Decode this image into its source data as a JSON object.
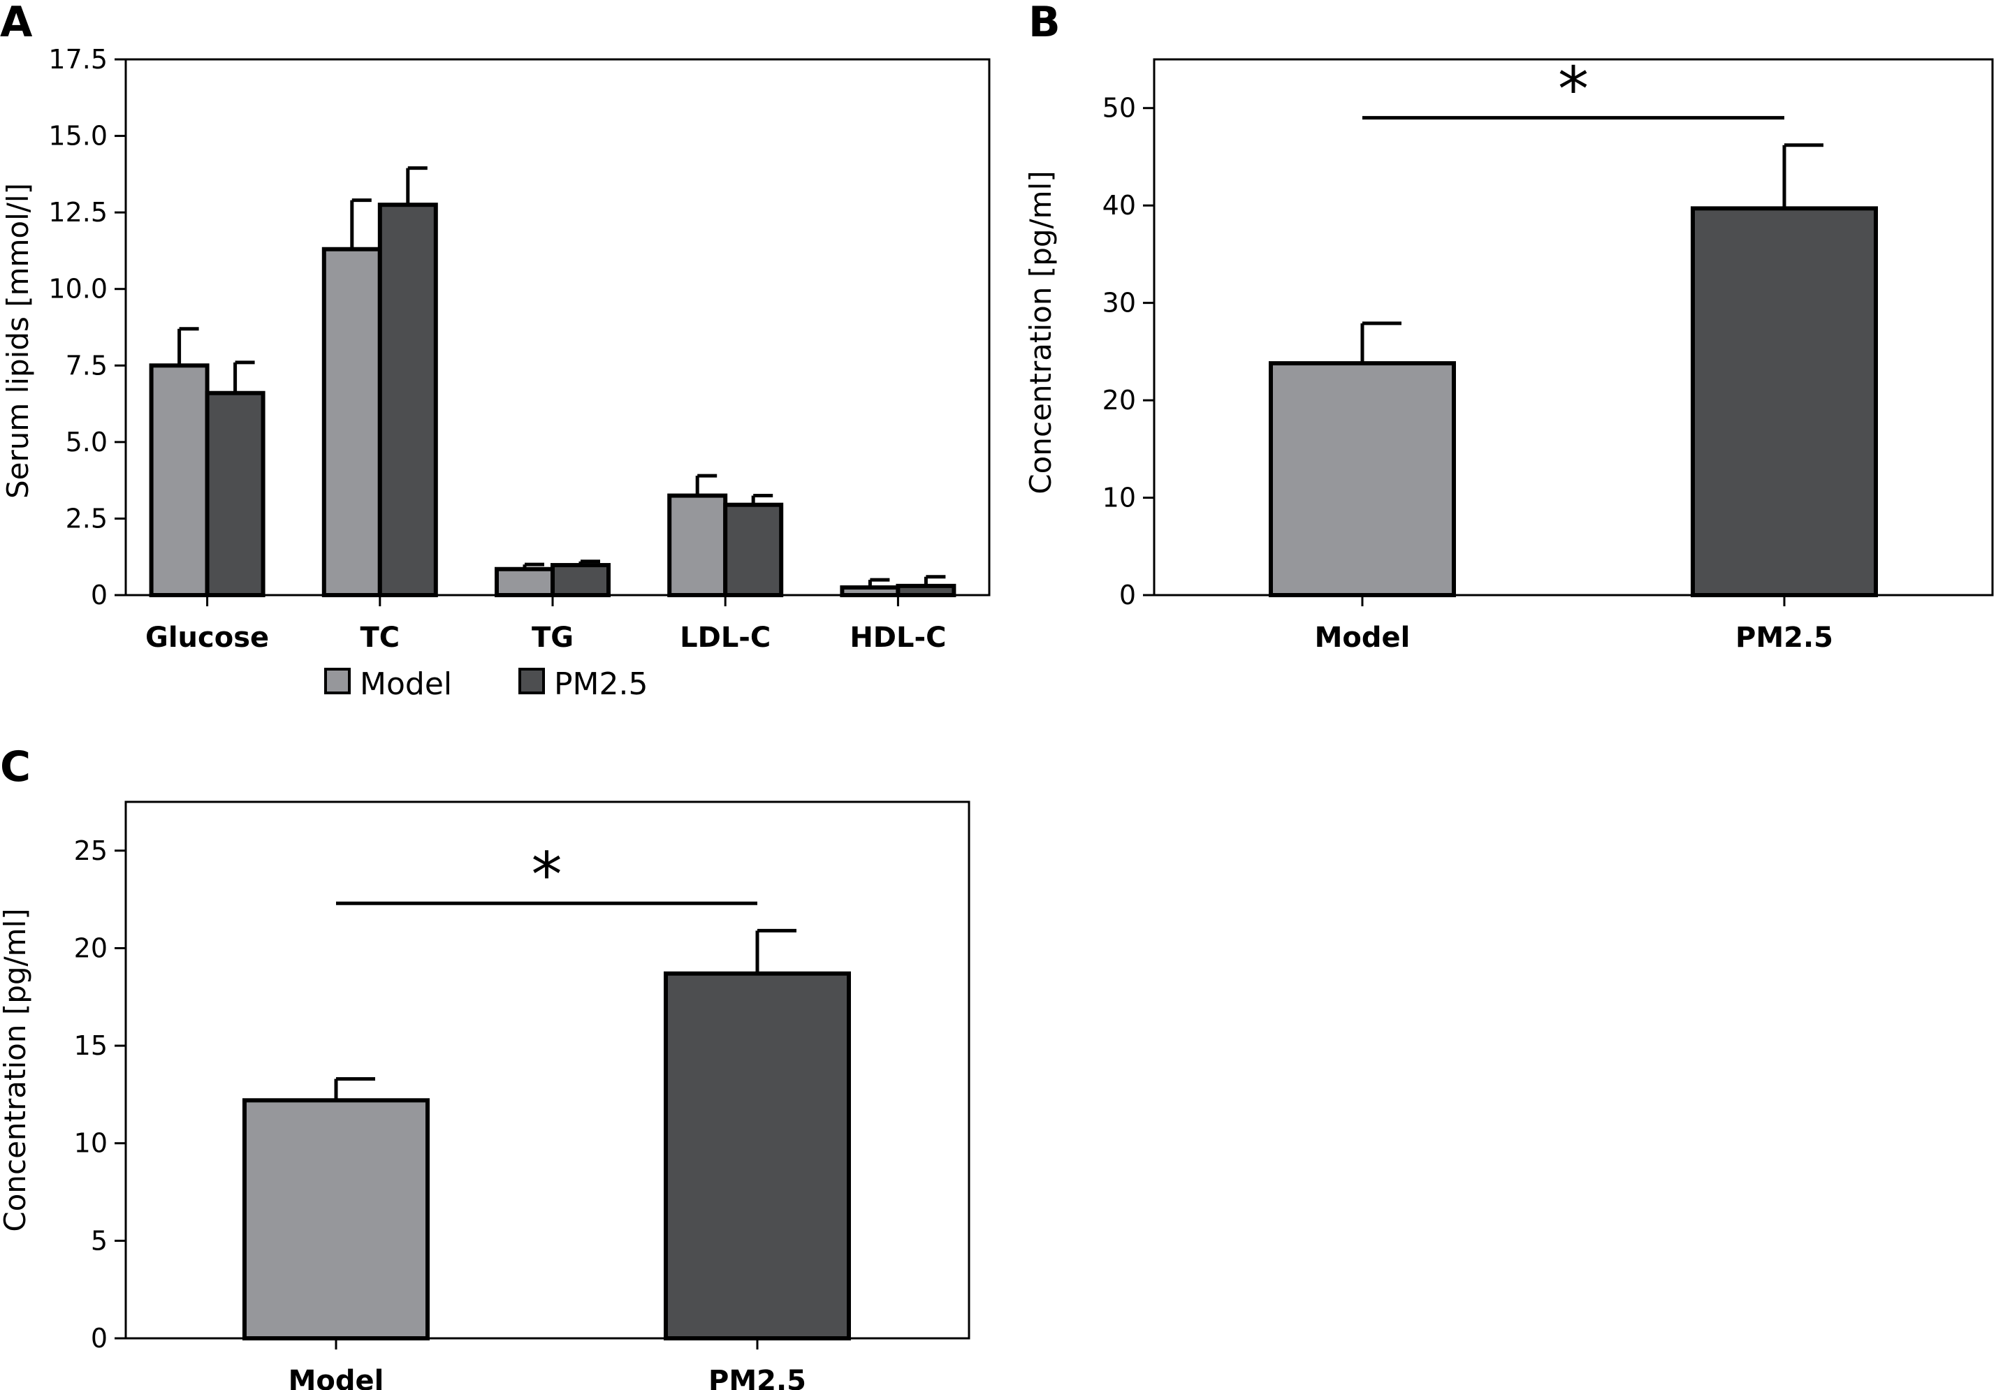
{
  "colors": {
    "model": "#96979b",
    "pm25": "#4d4e50"
  },
  "chart_data": [
    {
      "id": "A",
      "type": "bar",
      "panel_label": "A",
      "ylabel": "Serum lipids [mmol/l]",
      "ylim": [
        0,
        17.5
      ],
      "yticks": [
        "0",
        "2.5",
        "5.0",
        "7.5",
        "10.0",
        "12.5",
        "15.0",
        "17.5"
      ],
      "categories": [
        "Glucose",
        "TC",
        "TG",
        "LDL-C",
        "HDL-C"
      ],
      "series": [
        {
          "name": "Model",
          "color": "#96979b",
          "values": [
            7.5,
            11.3,
            0.85,
            3.25,
            0.25
          ],
          "errors": [
            1.2,
            1.6,
            0.15,
            0.65,
            0.25
          ]
        },
        {
          "name": "PM2.5",
          "color": "#4d4e50",
          "values": [
            6.6,
            12.75,
            0.98,
            2.95,
            0.3
          ],
          "errors": [
            1.0,
            1.2,
            0.12,
            0.3,
            0.3
          ]
        }
      ],
      "legend": {
        "placement": "bottom",
        "items": [
          "Model",
          "PM2.5"
        ]
      }
    },
    {
      "id": "B",
      "type": "bar",
      "panel_label": "B",
      "ylabel": "Concentration [pg/ml]",
      "ylim": [
        0,
        55
      ],
      "yticks": [
        "0",
        "10",
        "20",
        "30",
        "40",
        "50"
      ],
      "categories": [
        "Model",
        "PM2.5"
      ],
      "values": [
        23.8,
        39.7
      ],
      "errors": [
        4.1,
        6.5
      ],
      "significance": {
        "between": [
          0,
          1
        ],
        "label": "*",
        "y": 49
      }
    },
    {
      "id": "C",
      "type": "bar",
      "panel_label": "C",
      "ylabel": "Concentration [pg/ml]",
      "ylim": [
        0,
        27.5
      ],
      "yticks": [
        "0",
        "5",
        "10",
        "15",
        "20",
        "25"
      ],
      "categories": [
        "Model",
        "PM2.5"
      ],
      "values": [
        12.2,
        18.7
      ],
      "errors": [
        1.1,
        2.2
      ],
      "significance": {
        "between": [
          0,
          1
        ],
        "label": "*",
        "y": 22.3
      }
    }
  ]
}
